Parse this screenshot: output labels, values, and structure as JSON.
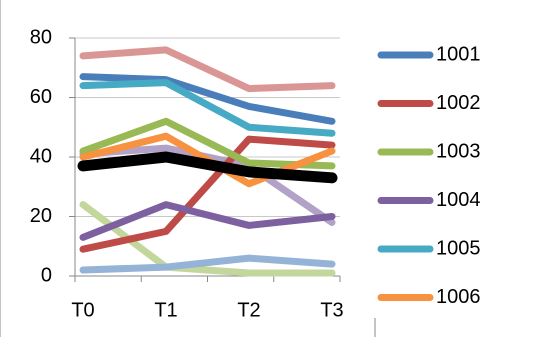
{
  "chart_data": {
    "type": "line",
    "categories": [
      "T0",
      "T1",
      "T2",
      "T3"
    ],
    "series": [
      {
        "color": "#d99694",
        "values": [
          74,
          76,
          63,
          64
        ]
      },
      {
        "color": "#b3a2c7",
        "values": [
          41,
          43,
          37,
          18
        ]
      },
      {
        "color": "#c3d69b",
        "values": [
          24,
          3,
          1,
          1
        ]
      },
      {
        "color": "#95b3d7",
        "values": [
          2,
          3,
          6,
          4
        ]
      },
      {
        "name": "1001",
        "color": "#4a7ebb",
        "values": [
          67,
          66,
          57,
          52
        ]
      },
      {
        "name": "1002",
        "color": "#be4b48",
        "values": [
          9,
          15,
          46,
          44
        ]
      },
      {
        "name": "1003",
        "color": "#98b954",
        "values": [
          42,
          52,
          38,
          37
        ]
      },
      {
        "name": "1004",
        "color": "#7d60a0",
        "values": [
          13,
          24,
          17,
          20
        ]
      },
      {
        "name": "1005",
        "color": "#46aac5",
        "values": [
          64,
          65,
          50,
          48
        ]
      },
      {
        "name": "1006",
        "color": "#f69240",
        "values": [
          40,
          47,
          31,
          42
        ]
      },
      {
        "color": "#000000",
        "values": [
          37,
          40,
          35,
          33
        ]
      }
    ],
    "ylim": [
      0,
      80
    ],
    "yticks": [
      0,
      20,
      40,
      60,
      80
    ],
    "grid": true,
    "legend": "right"
  }
}
